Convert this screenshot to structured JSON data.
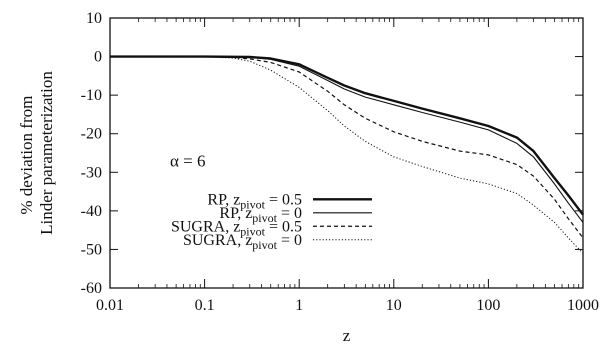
{
  "chart_data": {
    "type": "line",
    "xscale": "log",
    "xlabel": "z",
    "ylabel_lines": [
      "% deviation from",
      "Linder parameterization"
    ],
    "xlim": [
      0.01,
      1000
    ],
    "ylim": [
      -60,
      10
    ],
    "xticks": [
      0.01,
      0.1,
      1,
      10,
      100,
      1000
    ],
    "xtick_labels": [
      "0.01",
      "0.1",
      "1",
      "10",
      "100",
      "1000"
    ],
    "yticks": [
      -60,
      -50,
      -40,
      -30,
      -20,
      -10,
      0,
      10
    ],
    "ytick_labels": [
      "-60",
      "-50",
      "-40",
      "-30",
      "-20",
      "-10",
      "0",
      "10"
    ],
    "grid": false,
    "legend_position": "lower-left",
    "annotation": "α = 6",
    "series": [
      {
        "name_main": "RP, z",
        "name_sub": "pivot",
        "name_tail": " = 0.5",
        "style": "thick-solid",
        "x": [
          0.01,
          0.1,
          0.3,
          0.5,
          1,
          2,
          3,
          5,
          10,
          20,
          50,
          100,
          200,
          300,
          500,
          700,
          1000
        ],
        "y": [
          0,
          0,
          -0.1,
          -0.5,
          -2,
          -5.5,
          -7.5,
          -9.5,
          -11.5,
          -13.5,
          -16,
          -18,
          -21,
          -24.5,
          -31.5,
          -36,
          -41
        ]
      },
      {
        "name_main": "RP, z",
        "name_sub": "pivot",
        "name_tail": " = 0",
        "style": "thin-solid",
        "x": [
          0.01,
          0.1,
          0.3,
          0.5,
          1,
          2,
          3,
          5,
          10,
          20,
          50,
          100,
          200,
          300,
          500,
          700,
          1000
        ],
        "y": [
          0,
          0,
          -0.2,
          -0.7,
          -2.5,
          -6.2,
          -8.4,
          -10.5,
          -12.5,
          -14.5,
          -17,
          -19,
          -22.5,
          -26,
          -33,
          -38,
          -43
        ]
      },
      {
        "name_main": "SUGRA, z",
        "name_sub": "pivot",
        "name_tail": " = 0.5",
        "style": "dashed",
        "x": [
          0.01,
          0.1,
          0.2,
          0.3,
          0.5,
          1,
          2,
          3,
          5,
          10,
          20,
          50,
          100,
          200,
          300,
          500,
          700,
          1000
        ],
        "y": [
          0,
          0,
          -0.2,
          -0.6,
          -1.5,
          -4,
          -9,
          -12.5,
          -16,
          -19.5,
          -22,
          -24.5,
          -25.5,
          -28,
          -31,
          -37,
          -42,
          -47
        ]
      },
      {
        "name_main": "SUGRA, z",
        "name_sub": "pivot",
        "name_tail": " = 0",
        "style": "dotted",
        "x": [
          0.01,
          0.1,
          0.2,
          0.3,
          0.5,
          1,
          2,
          3,
          5,
          10,
          20,
          50,
          100,
          200,
          300,
          500,
          700,
          1000
        ],
        "y": [
          0,
          0,
          -0.4,
          -1.2,
          -3.5,
          -8,
          -14,
          -18,
          -22,
          -26,
          -28.5,
          -31.5,
          -33,
          -35.5,
          -38.5,
          -43,
          -47,
          -51
        ]
      }
    ]
  }
}
